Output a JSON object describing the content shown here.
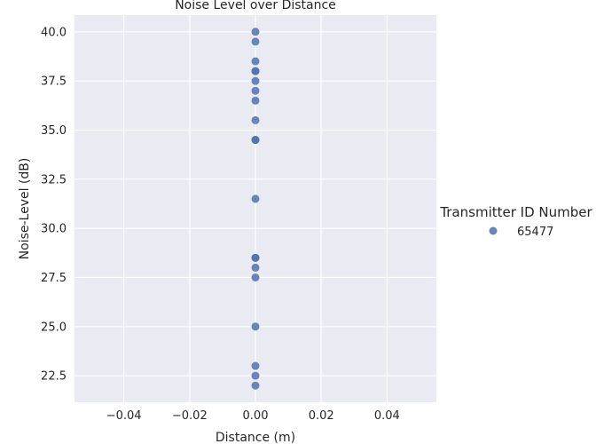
{
  "chart_data": {
    "type": "scatter",
    "title": "Noise Level over Distance",
    "xlabel": "Distance (m)",
    "ylabel": "Noise-Level (dB)",
    "xlim": [
      -0.055,
      0.055
    ],
    "ylim": [
      21.15,
      40.85
    ],
    "xticks": [
      -0.04,
      -0.02,
      0.0,
      0.02,
      0.04
    ],
    "xtick_labels": [
      "−0.04",
      "−0.02",
      "0.00",
      "0.02",
      "0.04"
    ],
    "yticks": [
      22.5,
      25.0,
      27.5,
      30.0,
      32.5,
      35.0,
      37.5,
      40.0
    ],
    "ytick_labels": [
      "22.5",
      "25.0",
      "27.5",
      "30.0",
      "32.5",
      "35.0",
      "37.5",
      "40.0"
    ],
    "grid": true,
    "legend": {
      "title": "Transmitter ID Number",
      "placement": "outside-right",
      "entries": [
        "65477"
      ]
    },
    "series": [
      {
        "name": "65477",
        "color": "#4c72b0",
        "x": [
          0,
          0,
          0,
          0,
          0,
          0,
          0,
          0,
          0,
          0,
          0,
          0,
          0,
          0,
          0,
          0,
          0,
          0,
          0,
          0
        ],
        "y": [
          40.0,
          39.5,
          38.5,
          38.0,
          37.5,
          37.0,
          36.5,
          35.5,
          34.5,
          31.5,
          28.5,
          28.0,
          27.5,
          25.0,
          23.0,
          22.5,
          22.0,
          28.5,
          34.5,
          38.0
        ]
      }
    ]
  }
}
